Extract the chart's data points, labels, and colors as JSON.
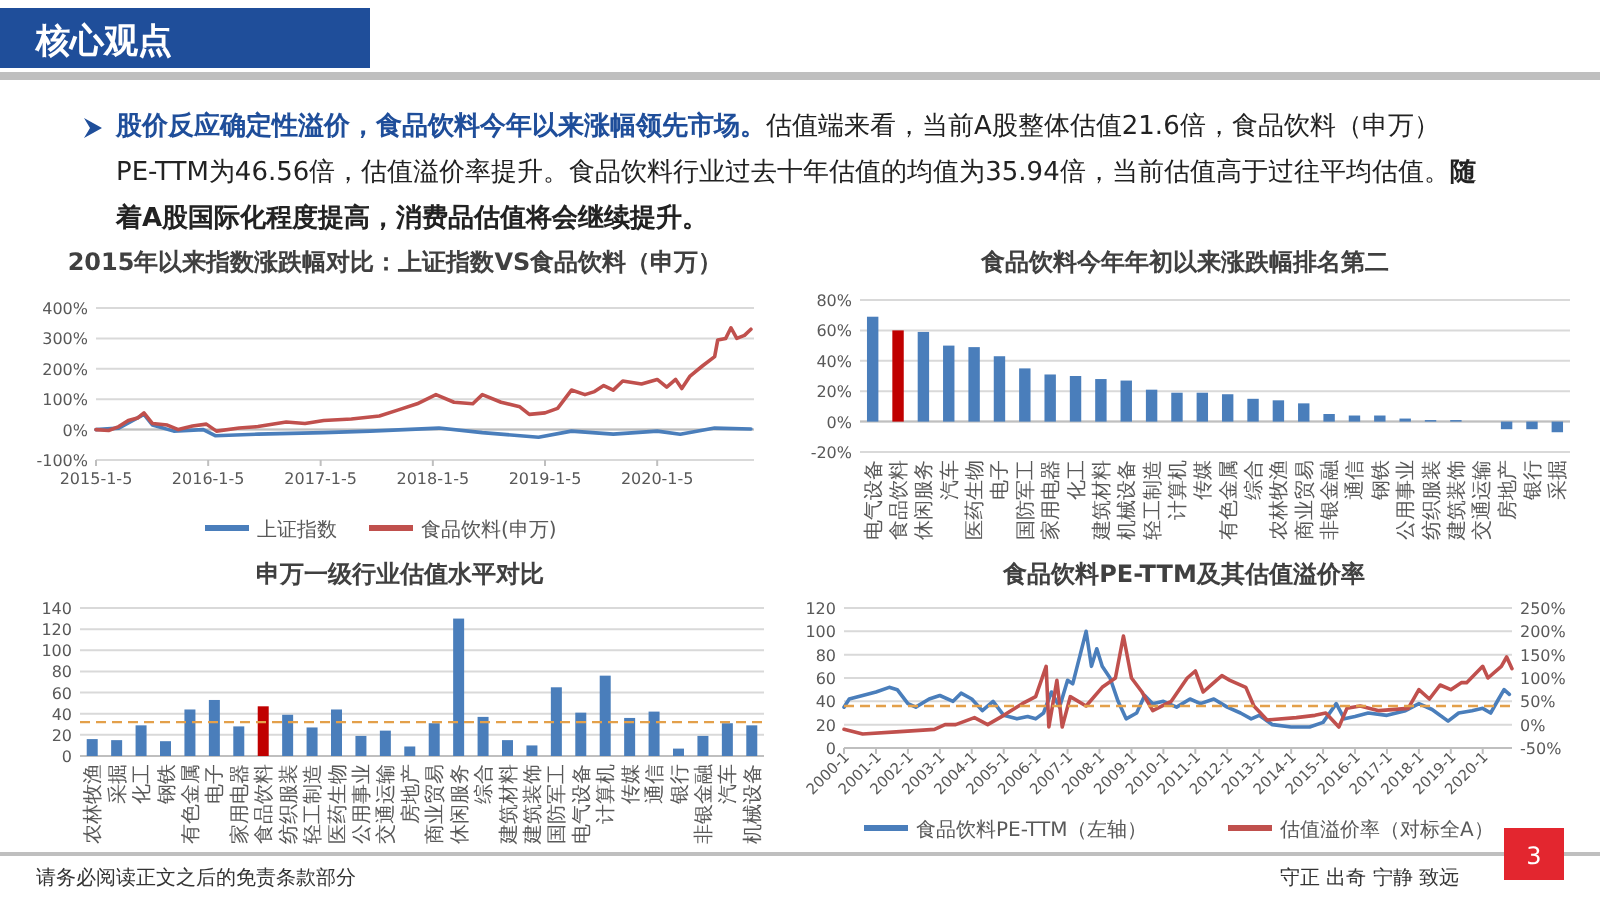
{
  "chart_data": [
    {
      "type": "other",
      "title": "核心观点",
      "annotations": [
        "股价反应确定性溢价，食品饮料今年以来涨幅领先市场。",
        "估值端来看，当前A股整体估值21.6倍，食品饮料（申万）PE-TTM为46.56倍，估值溢价率提升。食品饮料行业过去十年估值的均值为35.94倍，当前估值高于过往平均估值。",
        "随着A股国际化程度提高，消费品估值将会继续提升。",
        "请务必阅读正文之后的免责条款部分",
        "守正  出奇  宁静  致远",
        "3"
      ]
    },
    {
      "type": "line",
      "title": "2015年以来指数涨跌幅对比：上证指数VS食品饮料（申万）",
      "xlim": [
        "2015-01-05",
        "2020-11-15"
      ],
      "xticks": [
        {
          "value": "2015-01-05",
          "label": "2015-1-5"
        },
        {
          "value": "2016-01-05",
          "label": "2016-1-5"
        },
        {
          "value": "2017-01-05",
          "label": "2017-1-5"
        },
        {
          "value": "2018-01-05",
          "label": "2018-1-5"
        },
        {
          "value": "2019-01-05",
          "label": "2019-1-5"
        },
        {
          "value": "2020-01-05",
          "label": "2020-1-5"
        }
      ],
      "ylim": [
        -100,
        400
      ],
      "yticks": [
        {
          "value": -100,
          "label": "-100%"
        },
        {
          "value": 0,
          "label": "0%"
        },
        {
          "value": 100,
          "label": "100%"
        },
        {
          "value": 200,
          "label": "200%"
        },
        {
          "value": 300,
          "label": "300%"
        },
        {
          "value": 400,
          "label": "400%"
        }
      ],
      "grid": "y",
      "legend": "bottom",
      "series": [
        {
          "name": "上证指数",
          "color": "#4a7ebb",
          "x": [
            "2015-01-05",
            "2015-03-20",
            "2015-06-10",
            "2015-07-08",
            "2015-09-15",
            "2015-12-20",
            "2016-01-28",
            "2016-06-15",
            "2017-01-15",
            "2017-06-15",
            "2018-01-25",
            "2018-06-15",
            "2018-12-15",
            "2019-04-01",
            "2019-08-15",
            "2020-01-05",
            "2020-03-20",
            "2020-07-10",
            "2020-11-05"
          ],
          "values": [
            0,
            5,
            50,
            15,
            -5,
            0,
            -20,
            -15,
            -10,
            -5,
            5,
            -10,
            -25,
            -5,
            -15,
            -5,
            -15,
            5,
            2
          ]
        },
        {
          "name": "食品饮料(申万)",
          "color": "#c0504d",
          "x": [
            "2015-01-05",
            "2015-02-15",
            "2015-03-20",
            "2015-04-20",
            "2015-05-20",
            "2015-06-10",
            "2015-07-08",
            "2015-08-25",
            "2015-09-30",
            "2015-11-15",
            "2015-12-30",
            "2016-02-01",
            "2016-04-15",
            "2016-06-15",
            "2016-09-15",
            "2016-11-15",
            "2017-01-15",
            "2017-04-15",
            "2017-07-15",
            "2017-09-15",
            "2017-11-15",
            "2018-01-15",
            "2018-03-15",
            "2018-05-15",
            "2018-06-15",
            "2018-08-15",
            "2018-10-15",
            "2018-11-15",
            "2019-01-05",
            "2019-02-15",
            "2019-04-01",
            "2019-05-15",
            "2019-06-15",
            "2019-07-15",
            "2019-08-15",
            "2019-09-15",
            "2019-11-15",
            "2020-01-05",
            "2020-02-05",
            "2020-03-05",
            "2020-03-25",
            "2020-04-20",
            "2020-06-01",
            "2020-07-10",
            "2020-07-20",
            "2020-08-15",
            "2020-09-01",
            "2020-09-20",
            "2020-10-15",
            "2020-11-05"
          ],
          "values": [
            0,
            -3,
            10,
            30,
            38,
            55,
            20,
            15,
            0,
            12,
            18,
            -5,
            5,
            10,
            25,
            20,
            30,
            35,
            45,
            65,
            85,
            115,
            90,
            85,
            115,
            90,
            75,
            50,
            55,
            70,
            130,
            115,
            125,
            145,
            130,
            160,
            150,
            165,
            140,
            165,
            135,
            175,
            210,
            240,
            295,
            300,
            335,
            300,
            310,
            330
          ]
        }
      ]
    },
    {
      "type": "bar",
      "title": "食品饮料今年年初以来涨跌幅排名第二",
      "categories": [
        "电气设备",
        "食品饮料",
        "休闲服务",
        "汽车",
        "医药生物",
        "电子",
        "国防军工",
        "家用电器",
        "化工",
        "建筑材料",
        "机械设备",
        "轻工制造",
        "计算机",
        "传媒",
        "有色金属",
        "综合",
        "农林牧渔",
        "商业贸易",
        "非银金融",
        "通信",
        "钢铁",
        "公用事业",
        "纺织服装",
        "建筑装饰",
        "交通运输",
        "房地产",
        "银行",
        "采掘"
      ],
      "values": [
        69,
        60,
        59,
        50,
        49,
        43,
        35,
        31,
        30,
        28,
        27,
        21,
        19,
        19,
        18,
        15,
        14,
        12,
        5,
        4,
        4,
        2,
        1,
        1,
        0,
        -5,
        -5,
        -7
      ],
      "colors": [
        "#4a7ebb",
        "#c00000",
        "#4a7ebb",
        "#4a7ebb",
        "#4a7ebb",
        "#4a7ebb",
        "#4a7ebb",
        "#4a7ebb",
        "#4a7ebb",
        "#4a7ebb",
        "#4a7ebb",
        "#4a7ebb",
        "#4a7ebb",
        "#4a7ebb",
        "#4a7ebb",
        "#4a7ebb",
        "#4a7ebb",
        "#4a7ebb",
        "#4a7ebb",
        "#4a7ebb",
        "#4a7ebb",
        "#4a7ebb",
        "#4a7ebb",
        "#4a7ebb",
        "#4a7ebb",
        "#4a7ebb",
        "#4a7ebb",
        "#4a7ebb"
      ],
      "ylim": [
        -20,
        80
      ],
      "yticks": [
        {
          "value": -20,
          "label": "-20%"
        },
        {
          "value": 0,
          "label": "0%"
        },
        {
          "value": 20,
          "label": "20%"
        },
        {
          "value": 40,
          "label": "40%"
        },
        {
          "value": 60,
          "label": "60%"
        },
        {
          "value": 80,
          "label": "80%"
        }
      ],
      "grid": "y"
    },
    {
      "type": "bar",
      "title": "申万一级行业估值水平对比",
      "categories": [
        "农林牧渔",
        "采掘",
        "化工",
        "钢铁",
        "有色金属",
        "电子",
        "家用电器",
        "食品饮料",
        "纺织服装",
        "轻工制造",
        "医药生物",
        "公用事业",
        "交通运输",
        "房地产",
        "商业贸易",
        "休闲服务",
        "综合",
        "建筑材料",
        "建筑装饰",
        "国防军工",
        "电气设备",
        "计算机",
        "传媒",
        "通信",
        "银行",
        "非银金融",
        "汽车",
        "机械设备"
      ],
      "values": [
        16,
        15,
        29,
        14,
        44,
        53,
        28,
        47,
        39,
        27,
        44,
        19,
        24,
        9,
        31,
        130,
        37,
        15,
        10,
        65,
        41,
        76,
        36,
        42,
        7,
        19,
        31,
        29
      ],
      "colors": [
        "#4a7ebb",
        "#4a7ebb",
        "#4a7ebb",
        "#4a7ebb",
        "#4a7ebb",
        "#4a7ebb",
        "#4a7ebb",
        "#c00000",
        "#4a7ebb",
        "#4a7ebb",
        "#4a7ebb",
        "#4a7ebb",
        "#4a7ebb",
        "#4a7ebb",
        "#4a7ebb",
        "#4a7ebb",
        "#4a7ebb",
        "#4a7ebb",
        "#4a7ebb",
        "#4a7ebb",
        "#4a7ebb",
        "#4a7ebb",
        "#4a7ebb",
        "#4a7ebb",
        "#4a7ebb",
        "#4a7ebb",
        "#4a7ebb",
        "#4a7ebb"
      ],
      "ylim": [
        0,
        140
      ],
      "yticks": [
        0,
        20,
        40,
        60,
        80,
        100,
        120,
        140
      ],
      "grid": "y",
      "ref_lines": [
        {
          "axis": "y",
          "value": 32,
          "color": "#e3a04a",
          "line_style": "dashed"
        }
      ]
    },
    {
      "type": "line",
      "title": "食品饮料PE-TTM及其估值溢价率",
      "xlim": [
        "2000-01",
        "2020-12"
      ],
      "xticks": [
        {
          "value": "2000-01",
          "label": "2000-1"
        },
        {
          "value": "2001-01",
          "label": "2001-1"
        },
        {
          "value": "2002-01",
          "label": "2002-1"
        },
        {
          "value": "2003-01",
          "label": "2003-1"
        },
        {
          "value": "2004-01",
          "label": "2004-1"
        },
        {
          "value": "2005-01",
          "label": "2005-1"
        },
        {
          "value": "2006-01",
          "label": "2006-1"
        },
        {
          "value": "2007-01",
          "label": "2007-1"
        },
        {
          "value": "2008-01",
          "label": "2008-1"
        },
        {
          "value": "2009-01",
          "label": "2009-1"
        },
        {
          "value": "2010-01",
          "label": "2010-1"
        },
        {
          "value": "2011-01",
          "label": "2011-1"
        },
        {
          "value": "2012-01",
          "label": "2012-1"
        },
        {
          "value": "2013-01",
          "label": "2013-1"
        },
        {
          "value": "2014-01",
          "label": "2014-1"
        },
        {
          "value": "2015-01",
          "label": "2015-1"
        },
        {
          "value": "2016-01",
          "label": "2016-1"
        },
        {
          "value": "2017-01",
          "label": "2017-1"
        },
        {
          "value": "2018-01",
          "label": "2018-1"
        },
        {
          "value": "2019-01",
          "label": "2019-1"
        },
        {
          "value": "2020-01",
          "label": "2020-1"
        }
      ],
      "ylim": [
        0,
        120
      ],
      "yticks": [
        0,
        20,
        40,
        60,
        80,
        100,
        120
      ],
      "y2lim": [
        -50,
        250
      ],
      "y2ticks": [
        {
          "value": -50,
          "label": "-50%"
        },
        {
          "value": 0,
          "label": "0%"
        },
        {
          "value": 50,
          "label": "50%"
        },
        {
          "value": 100,
          "label": "100%"
        },
        {
          "value": 150,
          "label": "150%"
        },
        {
          "value": 200,
          "label": "200%"
        },
        {
          "value": 250,
          "label": "250%"
        }
      ],
      "grid": "y",
      "legend": "bottom",
      "ref_lines": [
        {
          "axis": "y",
          "value": 35.94,
          "color": "#e3a04a",
          "line_style": "dashed"
        }
      ],
      "series": [
        {
          "name": "食品饮料PE-TTM（左轴）",
          "color": "#4a7ebb",
          "x": [
            "2000-01",
            "2000-03",
            "2000-08",
            "2001-01",
            "2001-06",
            "2001-09",
            "2002-01",
            "2002-04",
            "2002-09",
            "2003-01",
            "2003-06",
            "2003-09",
            "2004-01",
            "2004-05",
            "2004-09",
            "2005-01",
            "2005-06",
            "2005-10",
            "2006-01",
            "2006-04",
            "2006-07",
            "2006-10",
            "2007-01",
            "2007-03",
            "2007-06",
            "2007-08",
            "2007-10",
            "2007-12",
            "2008-02",
            "2008-05",
            "2008-08",
            "2008-11",
            "2009-03",
            "2009-06",
            "2009-09",
            "2010-01",
            "2010-06",
            "2010-11",
            "2011-03",
            "2011-08",
            "2012-01",
            "2012-06",
            "2012-10",
            "2013-01",
            "2013-06",
            "2014-01",
            "2014-08",
            "2015-01",
            "2015-06",
            "2015-09",
            "2016-01",
            "2016-06",
            "2017-01",
            "2017-08",
            "2018-01",
            "2018-06",
            "2018-12",
            "2019-04",
            "2019-09",
            "2020-01",
            "2020-04",
            "2020-07",
            "2020-09",
            "2020-11"
          ],
          "values": [
            35,
            42,
            45,
            48,
            52,
            50,
            38,
            35,
            42,
            45,
            40,
            47,
            42,
            32,
            40,
            28,
            25,
            27,
            25,
            30,
            48,
            35,
            58,
            55,
            82,
            100,
            70,
            85,
            70,
            60,
            40,
            25,
            30,
            45,
            38,
            40,
            35,
            42,
            38,
            42,
            35,
            30,
            25,
            28,
            20,
            18,
            18,
            22,
            38,
            25,
            27,
            30,
            28,
            32,
            38,
            33,
            23,
            30,
            32,
            34,
            30,
            42,
            50,
            46
          ]
        },
        {
          "name": "估值溢价率（对标全A）",
          "color": "#c0504d",
          "axis": "y2",
          "x": [
            "2000-01",
            "2000-08",
            "2001-10",
            "2002-11",
            "2003-03",
            "2003-07",
            "2004-02",
            "2004-07",
            "2005-01",
            "2005-08",
            "2006-01",
            "2006-05",
            "2006-06",
            "2006-09",
            "2006-11",
            "2007-02",
            "2007-08",
            "2008-02",
            "2008-07",
            "2008-10",
            "2009-01",
            "2009-05",
            "2009-09",
            "2010-04",
            "2010-10",
            "2011-01",
            "2011-04",
            "2011-08",
            "2011-11",
            "2012-02",
            "2012-08",
            "2012-11",
            "2013-04",
            "2014-03",
            "2014-10",
            "2015-02",
            "2015-07",
            "2015-10",
            "2016-03",
            "2016-10",
            "2017-09",
            "2018-01",
            "2018-05",
            "2018-09",
            "2019-01",
            "2019-05",
            "2019-07",
            "2020-01",
            "2020-03",
            "2020-08",
            "2020-10",
            "2020-12"
          ],
          "values": [
            -10,
            -20,
            -15,
            -10,
            0,
            0,
            15,
            0,
            20,
            45,
            60,
            125,
            -5,
            95,
            -5,
            60,
            40,
            80,
            100,
            190,
            100,
            70,
            30,
            50,
            100,
            115,
            70,
            90,
            105,
            95,
            80,
            40,
            10,
            15,
            20,
            25,
            -5,
            35,
            40,
            30,
            35,
            75,
            55,
            85,
            75,
            90,
            90,
            125,
            100,
            125,
            145,
            120
          ]
        }
      ]
    }
  ]
}
